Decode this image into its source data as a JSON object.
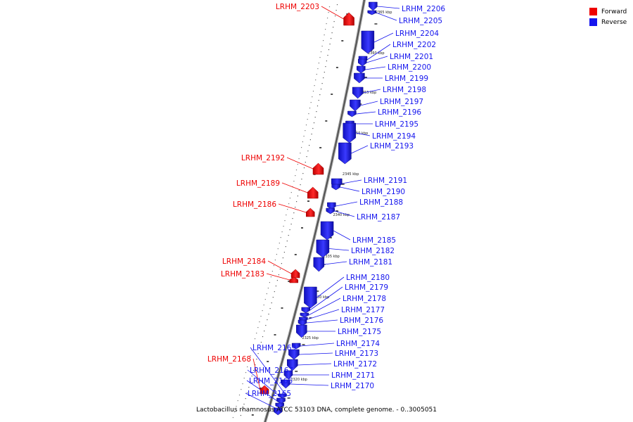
{
  "legend": {
    "forward": "Forward",
    "reverse": "Reverse",
    "forward_color": "#ee0000",
    "reverse_color": "#1515ee"
  },
  "caption": "Lactobacillus rhamnosus ATCC 53103 DNA, complete genome. - 0..3005051",
  "scale_unit": "kbp",
  "ticks": [
    {
      "label": "2365 kbp",
      "kbp": 2365
    },
    {
      "label": "2360 kbp",
      "kbp": 2360
    },
    {
      "label": "2355 kbp",
      "kbp": 2355
    },
    {
      "label": "2350 kbp",
      "kbp": 2350
    },
    {
      "label": "2345 kbp",
      "kbp": 2345
    },
    {
      "label": "2340 kbp",
      "kbp": 2340
    },
    {
      "label": "2335 kbp",
      "kbp": 2335
    },
    {
      "label": "2330 kbp",
      "kbp": 2330
    },
    {
      "label": "2325 kbp",
      "kbp": 2325
    },
    {
      "label": "2320 kbp",
      "kbp": 2320
    }
  ],
  "genes": [
    {
      "name": "LRHM_2206",
      "strand": "reverse"
    },
    {
      "name": "LRHM_2205",
      "strand": "reverse"
    },
    {
      "name": "LRHM_2204",
      "strand": "reverse"
    },
    {
      "name": "LRHM_2203",
      "strand": "forward"
    },
    {
      "name": "LRHM_2202",
      "strand": "reverse"
    },
    {
      "name": "LRHM_2201",
      "strand": "reverse"
    },
    {
      "name": "LRHM_2200",
      "strand": "reverse"
    },
    {
      "name": "LRHM_2199",
      "strand": "reverse"
    },
    {
      "name": "LRHM_2198",
      "strand": "reverse"
    },
    {
      "name": "LRHM_2197",
      "strand": "reverse"
    },
    {
      "name": "LRHM_2196",
      "strand": "reverse"
    },
    {
      "name": "LRHM_2195",
      "strand": "reverse"
    },
    {
      "name": "LRHM_2194",
      "strand": "reverse"
    },
    {
      "name": "LRHM_2193",
      "strand": "reverse"
    },
    {
      "name": "LRHM_2192",
      "strand": "forward"
    },
    {
      "name": "LRHM_2191",
      "strand": "reverse"
    },
    {
      "name": "LRHM_2190",
      "strand": "reverse"
    },
    {
      "name": "LRHM_2189",
      "strand": "forward"
    },
    {
      "name": "LRHM_2188",
      "strand": "reverse"
    },
    {
      "name": "LRHM_2186",
      "strand": "forward"
    },
    {
      "name": "LRHM_2187",
      "strand": "reverse"
    },
    {
      "name": "LRHM_2185",
      "strand": "reverse"
    },
    {
      "name": "LRHM_2182",
      "strand": "reverse"
    },
    {
      "name": "LRHM_2181",
      "strand": "reverse"
    },
    {
      "name": "LRHM_2184",
      "strand": "forward"
    },
    {
      "name": "LRHM_2183",
      "strand": "forward"
    },
    {
      "name": "LRHM_2180",
      "strand": "reverse"
    },
    {
      "name": "LRHM_2179",
      "strand": "reverse"
    },
    {
      "name": "LRHM_2178",
      "strand": "reverse"
    },
    {
      "name": "LRHM_2177",
      "strand": "reverse"
    },
    {
      "name": "LRHM_2176",
      "strand": "reverse"
    },
    {
      "name": "LRHM_2175",
      "strand": "reverse"
    },
    {
      "name": "LRHM_2174",
      "strand": "reverse"
    },
    {
      "name": "LRHM_2173",
      "strand": "reverse"
    },
    {
      "name": "LRHM_2172",
      "strand": "reverse"
    },
    {
      "name": "LRHM_2171",
      "strand": "reverse"
    },
    {
      "name": "LRHM_2170",
      "strand": "reverse"
    },
    {
      "name": "LRHM_2169",
      "strand": "reverse"
    },
    {
      "name": "LRHM_2168",
      "strand": "forward"
    },
    {
      "name": "LRHM_2167",
      "strand": "reverse"
    },
    {
      "name": "LRHM_2166",
      "strand": "reverse"
    },
    {
      "name": "LRHM_2165",
      "strand": "reverse"
    }
  ]
}
